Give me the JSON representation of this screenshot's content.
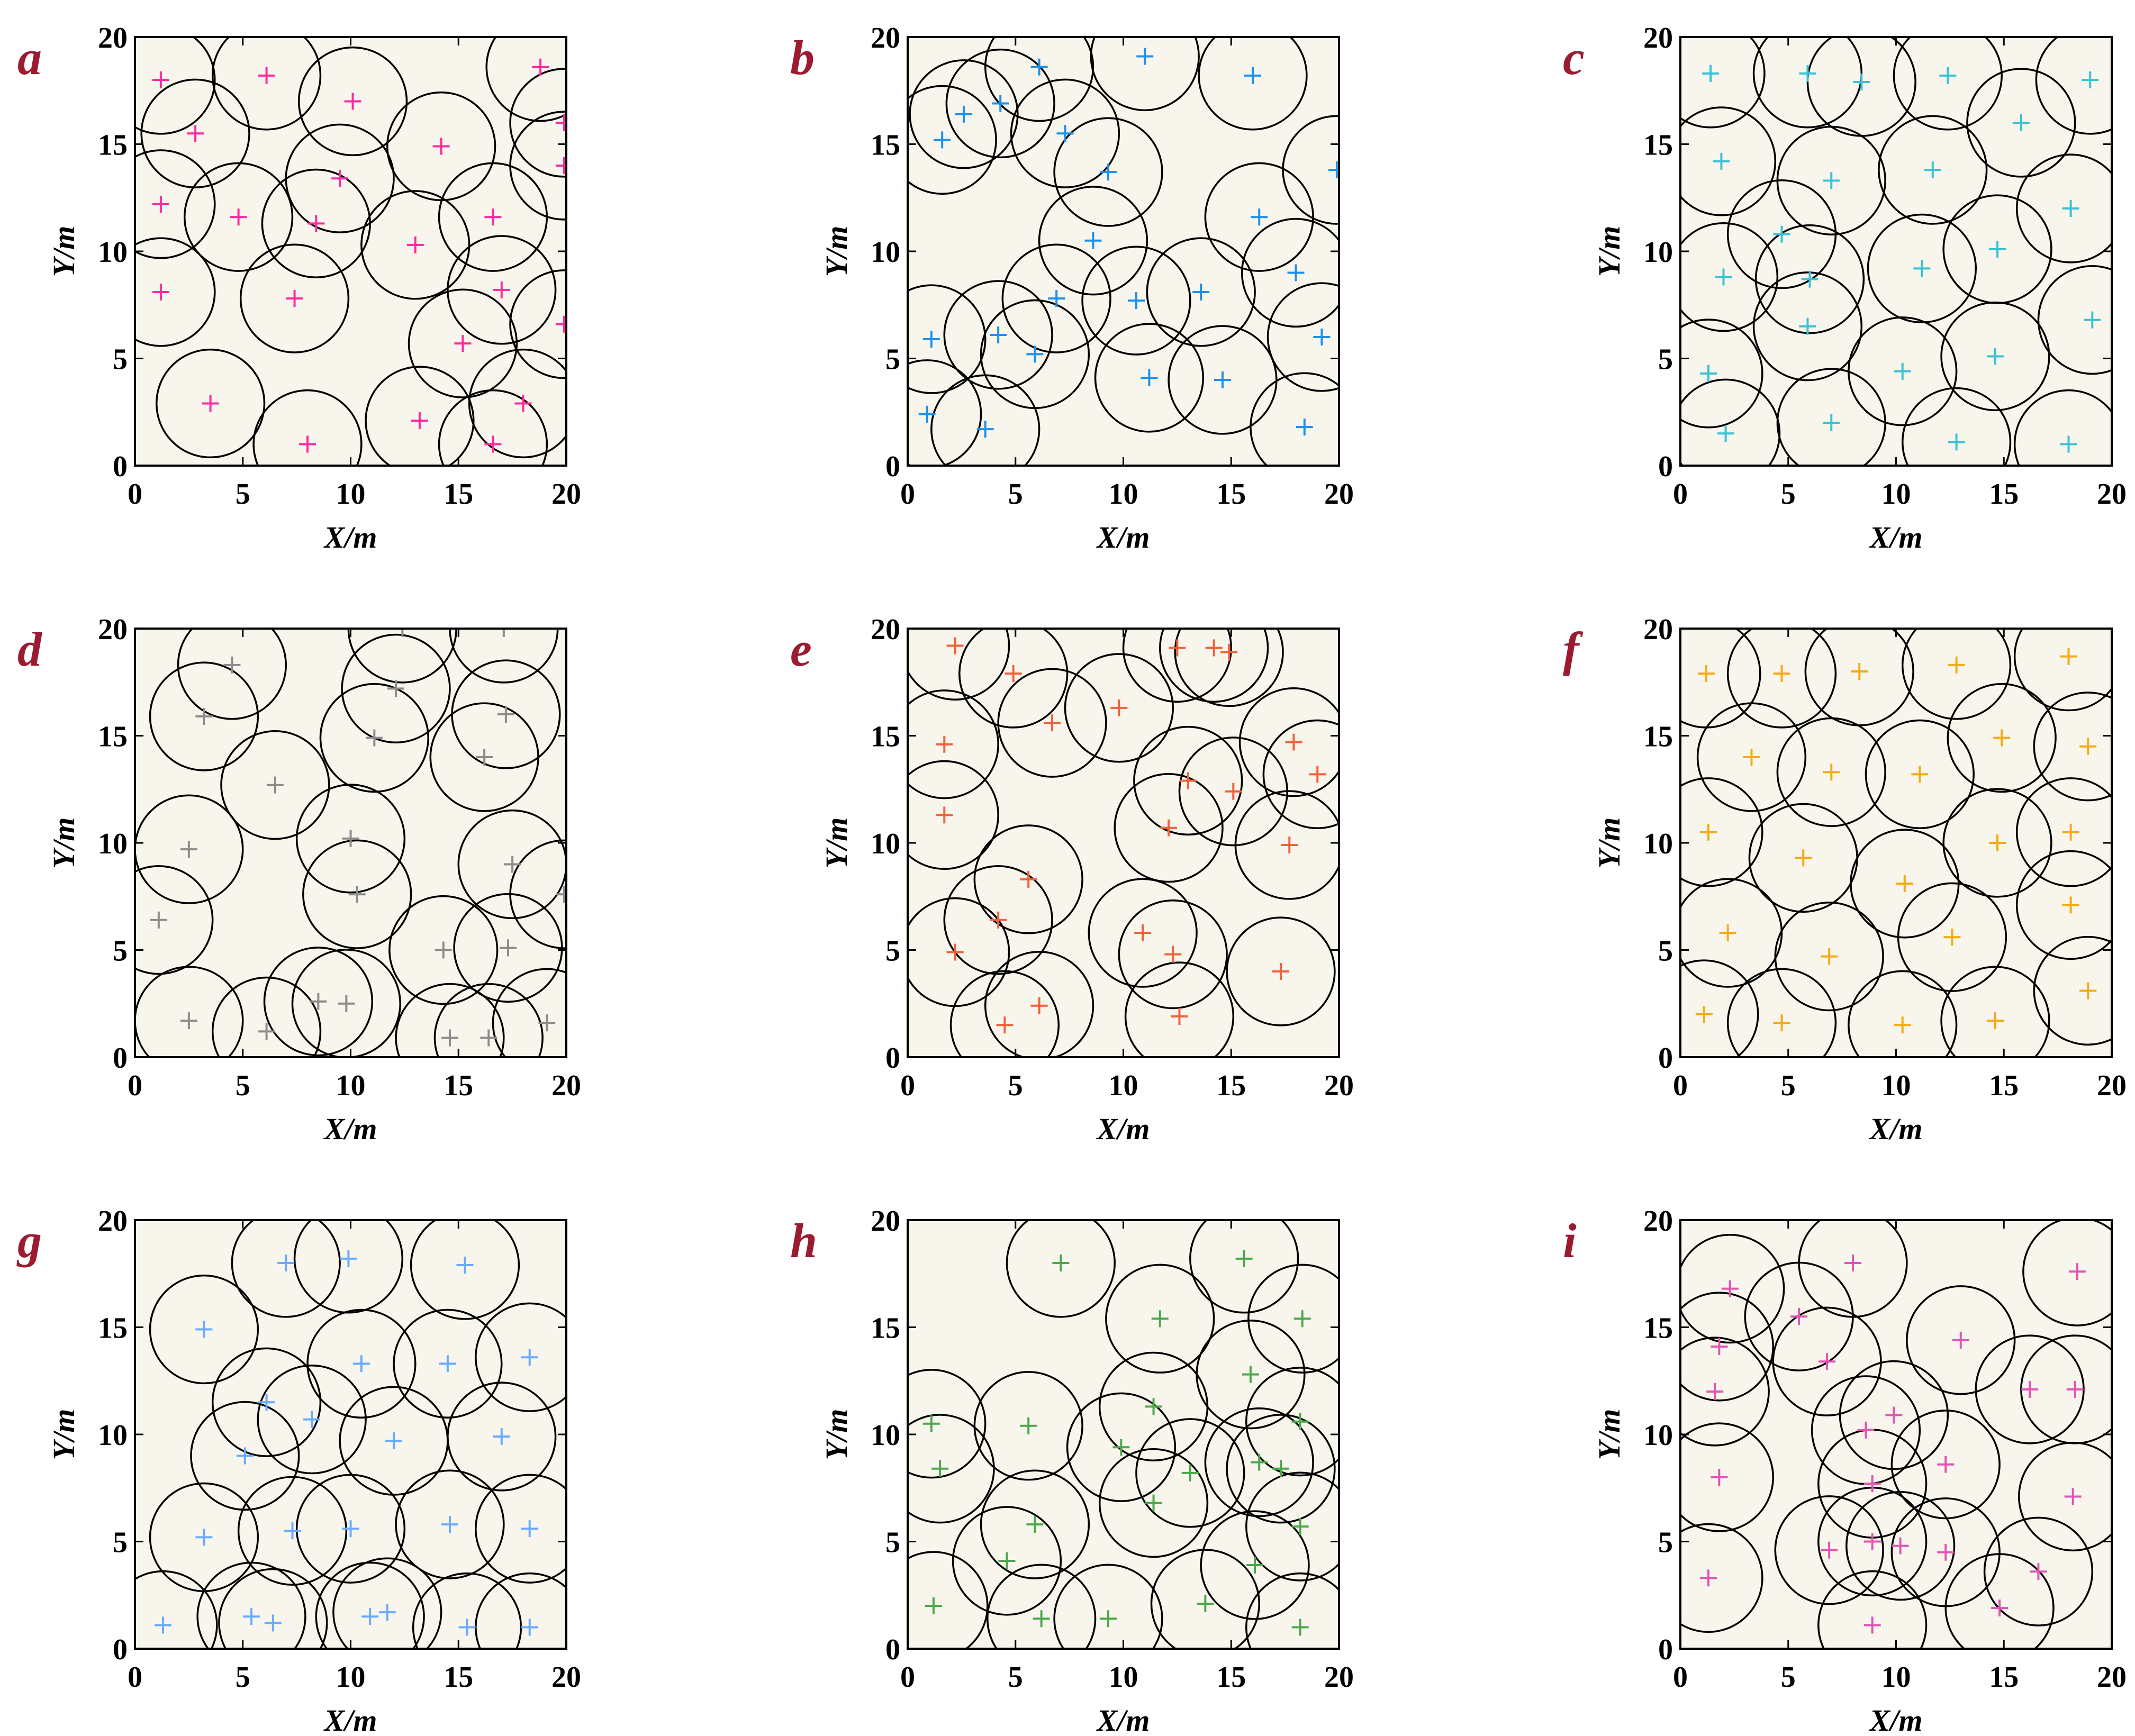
{
  "figure": {
    "background": "#ffffff",
    "plot_background": "#f8f6ec",
    "circle_color": "#000000",
    "letter_color": "#9b1b30"
  },
  "chart_data": [
    {
      "type": "scatter",
      "label": "a",
      "xlabel": "X/m",
      "ylabel": "Y/m",
      "xlim": [
        0,
        20
      ],
      "ylim": [
        0,
        20
      ],
      "xticks": [
        "0",
        "5",
        "10",
        "15",
        "20"
      ],
      "yticks": [
        "0",
        "5",
        "10",
        "15",
        "20"
      ],
      "grid": false,
      "marker_color": "#ff2aa0",
      "coverage_radius": 2.5,
      "points": [
        [
          1.2,
          18
        ],
        [
          6.1,
          18.2
        ],
        [
          2.8,
          15.5
        ],
        [
          10.1,
          17
        ],
        [
          18.8,
          18.6
        ],
        [
          1.2,
          12.2
        ],
        [
          4.8,
          11.6
        ],
        [
          8.4,
          11.3
        ],
        [
          9.5,
          13.4
        ],
        [
          14.2,
          14.9
        ],
        [
          19.9,
          16
        ],
        [
          19.9,
          14
        ],
        [
          13,
          10.3
        ],
        [
          16.6,
          11.6
        ],
        [
          1.2,
          8.1
        ],
        [
          7.4,
          7.8
        ],
        [
          17,
          8.2
        ],
        [
          19.9,
          6.6
        ],
        [
          15.2,
          5.7
        ],
        [
          3.5,
          2.9
        ],
        [
          8,
          1
        ],
        [
          13.2,
          2.1
        ],
        [
          16.6,
          1
        ],
        [
          18,
          2.9
        ]
      ]
    },
    {
      "type": "scatter",
      "label": "b",
      "xlabel": "X/m",
      "ylabel": "Y/m",
      "xlim": [
        0,
        20
      ],
      "ylim": [
        0,
        20
      ],
      "xticks": [
        "0",
        "5",
        "10",
        "15",
        "20"
      ],
      "yticks": [
        "0",
        "5",
        "10",
        "15",
        "20"
      ],
      "grid": false,
      "marker_color": "#1e90ee",
      "coverage_radius": 2.5,
      "points": [
        [
          6.1,
          18.6
        ],
        [
          11,
          19.1
        ],
        [
          16,
          18.2
        ],
        [
          2.6,
          16.4
        ],
        [
          4.3,
          16.9
        ],
        [
          1.6,
          15.2
        ],
        [
          7.3,
          15.5
        ],
        [
          9.3,
          13.7
        ],
        [
          19.9,
          13.8
        ],
        [
          16.3,
          11.6
        ],
        [
          8.6,
          10.5
        ],
        [
          18,
          9
        ],
        [
          6.9,
          7.8
        ],
        [
          10.6,
          7.7
        ],
        [
          13.6,
          8.1
        ],
        [
          1.1,
          5.9
        ],
        [
          4.2,
          6.1
        ],
        [
          5.9,
          5.2
        ],
        [
          19.2,
          6
        ],
        [
          11.2,
          4.1
        ],
        [
          14.6,
          4
        ],
        [
          0.9,
          2.4
        ],
        [
          3.6,
          1.7
        ],
        [
          18.4,
          1.8
        ]
      ]
    },
    {
      "type": "scatter",
      "label": "c",
      "xlabel": "X/m",
      "ylabel": "Y/m",
      "xlim": [
        0,
        20
      ],
      "ylim": [
        0,
        20
      ],
      "xticks": [
        "0",
        "5",
        "10",
        "15",
        "20"
      ],
      "yticks": [
        "0",
        "5",
        "10",
        "15",
        "20"
      ],
      "grid": false,
      "marker_color": "#3cc1d4",
      "coverage_radius": 2.5,
      "points": [
        [
          1.4,
          18.3
        ],
        [
          5.9,
          18.3
        ],
        [
          8.4,
          17.9
        ],
        [
          12.4,
          18.2
        ],
        [
          19,
          18
        ],
        [
          15.8,
          16
        ],
        [
          1.9,
          14.2
        ],
        [
          7,
          13.3
        ],
        [
          11.7,
          13.8
        ],
        [
          18.1,
          12
        ],
        [
          4.7,
          10.8
        ],
        [
          2,
          8.8
        ],
        [
          6,
          8.7
        ],
        [
          11.2,
          9.2
        ],
        [
          14.7,
          10.1
        ],
        [
          5.9,
          6.5
        ],
        [
          19.1,
          6.8
        ],
        [
          1.3,
          4.3
        ],
        [
          10.3,
          4.4
        ],
        [
          14.6,
          5.1
        ],
        [
          2.1,
          1.5
        ],
        [
          7,
          2
        ],
        [
          12.8,
          1.1
        ],
        [
          18,
          1
        ]
      ]
    },
    {
      "type": "scatter",
      "label": "d",
      "xlabel": "X/m",
      "ylabel": "Y/m",
      "xlim": [
        0,
        20
      ],
      "ylim": [
        0,
        20
      ],
      "xticks": [
        "0",
        "5",
        "10",
        "15",
        "20"
      ],
      "yticks": [
        "0",
        "5",
        "10",
        "15",
        "20"
      ],
      "grid": false,
      "marker_color": "#8c8c8c",
      "coverage_radius": 2.5,
      "points": [
        [
          12.4,
          20
        ],
        [
          17.1,
          20
        ],
        [
          4.5,
          18.3
        ],
        [
          12.1,
          17.2
        ],
        [
          3.2,
          15.9
        ],
        [
          11.1,
          14.9
        ],
        [
          17.2,
          16
        ],
        [
          16.2,
          14
        ],
        [
          6.5,
          12.7
        ],
        [
          2.5,
          9.7
        ],
        [
          10,
          10.2
        ],
        [
          10.3,
          7.6
        ],
        [
          17.5,
          9
        ],
        [
          19.9,
          7.6
        ],
        [
          1.1,
          6.4
        ],
        [
          14.3,
          5
        ],
        [
          17.3,
          5.1
        ],
        [
          2.5,
          1.7
        ],
        [
          6.1,
          1.2
        ],
        [
          8.5,
          2.6
        ],
        [
          9.8,
          2.5
        ],
        [
          14.6,
          0.9
        ],
        [
          16.4,
          0.9
        ],
        [
          19.1,
          1.6
        ]
      ]
    },
    {
      "type": "scatter",
      "label": "e",
      "xlabel": "X/m",
      "ylabel": "Y/m",
      "xlim": [
        0,
        20
      ],
      "ylim": [
        0,
        20
      ],
      "xticks": [
        "0",
        "5",
        "10",
        "15",
        "20"
      ],
      "yticks": [
        "0",
        "5",
        "10",
        "15",
        "20"
      ],
      "grid": false,
      "marker_color": "#f0623c",
      "coverage_radius": 2.5,
      "points": [
        [
          2.2,
          19.2
        ],
        [
          12.5,
          19.1
        ],
        [
          14.2,
          19.1
        ],
        [
          14.9,
          18.9
        ],
        [
          4.9,
          17.9
        ],
        [
          9.8,
          16.3
        ],
        [
          6.7,
          15.6
        ],
        [
          1.7,
          14.6
        ],
        [
          17.9,
          14.7
        ],
        [
          13,
          12.9
        ],
        [
          15.1,
          12.4
        ],
        [
          19,
          13.2
        ],
        [
          1.7,
          11.3
        ],
        [
          12.1,
          10.7
        ],
        [
          17.7,
          9.9
        ],
        [
          5.6,
          8.3
        ],
        [
          4.2,
          6.4
        ],
        [
          2.2,
          4.9
        ],
        [
          10.9,
          5.8
        ],
        [
          12.3,
          4.8
        ],
        [
          17.3,
          4
        ],
        [
          4.5,
          1.5
        ],
        [
          6.1,
          2.4
        ],
        [
          12.6,
          1.9
        ]
      ]
    },
    {
      "type": "scatter",
      "label": "f",
      "xlabel": "X/m",
      "ylabel": "Y/m",
      "xlim": [
        0,
        20
      ],
      "ylim": [
        0,
        20
      ],
      "xticks": [
        "0",
        "5",
        "10",
        "15",
        "20"
      ],
      "yticks": [
        "0",
        "5",
        "10",
        "15",
        "20"
      ],
      "grid": false,
      "marker_color": "#f5aa14",
      "coverage_radius": 2.5,
      "points": [
        [
          1.2,
          17.9
        ],
        [
          4.7,
          17.9
        ],
        [
          8.3,
          18
        ],
        [
          12.8,
          18.3
        ],
        [
          18,
          18.7
        ],
        [
          3.3,
          14
        ],
        [
          7,
          13.3
        ],
        [
          11.1,
          13.2
        ],
        [
          14.9,
          14.9
        ],
        [
          18.9,
          14.5
        ],
        [
          1.3,
          10.5
        ],
        [
          5.7,
          9.3
        ],
        [
          10.4,
          8.1
        ],
        [
          14.7,
          10
        ],
        [
          18.1,
          10.5
        ],
        [
          2.2,
          5.8
        ],
        [
          6.9,
          4.7
        ],
        [
          12.6,
          5.6
        ],
        [
          18.1,
          7.1
        ],
        [
          1.1,
          2
        ],
        [
          4.7,
          1.6
        ],
        [
          10.3,
          1.5
        ],
        [
          14.6,
          1.7
        ],
        [
          18.9,
          3.1
        ]
      ]
    },
    {
      "type": "scatter",
      "label": "g",
      "xlabel": "X/m",
      "ylabel": "Y/m",
      "xlim": [
        0,
        20
      ],
      "ylim": [
        0,
        20
      ],
      "xticks": [
        "0",
        "5",
        "10",
        "15",
        "20"
      ],
      "yticks": [
        "0",
        "5",
        "10",
        "15",
        "20"
      ],
      "grid": false,
      "marker_color": "#6aabff",
      "coverage_radius": 2.5,
      "points": [
        [
          7,
          18
        ],
        [
          9.9,
          18.2
        ],
        [
          15.3,
          17.9
        ],
        [
          3.2,
          14.9
        ],
        [
          10.5,
          13.3
        ],
        [
          14.5,
          13.3
        ],
        [
          18.3,
          13.6
        ],
        [
          6.1,
          11.5
        ],
        [
          8.2,
          10.7
        ],
        [
          12,
          9.7
        ],
        [
          17,
          9.9
        ],
        [
          5.1,
          9
        ],
        [
          3.2,
          5.2
        ],
        [
          7.3,
          5.5
        ],
        [
          10,
          5.6
        ],
        [
          14.6,
          5.8
        ],
        [
          18.3,
          5.6
        ],
        [
          1.3,
          1.1
        ],
        [
          5.4,
          1.5
        ],
        [
          6.4,
          1.2
        ],
        [
          10.9,
          1.5
        ],
        [
          11.7,
          1.7
        ],
        [
          15.4,
          1
        ],
        [
          18.3,
          1
        ]
      ]
    },
    {
      "type": "scatter",
      "label": "h",
      "xlabel": "X/m",
      "ylabel": "Y/m",
      "xlim": [
        0,
        20
      ],
      "ylim": [
        0,
        20
      ],
      "xticks": [
        "0",
        "5",
        "10",
        "15",
        "20"
      ],
      "yticks": [
        "0",
        "5",
        "10",
        "15",
        "20"
      ],
      "grid": false,
      "marker_color": "#4ca84c",
      "coverage_radius": 2.5,
      "points": [
        [
          7.1,
          18
        ],
        [
          15.6,
          18.2
        ],
        [
          11.7,
          15.4
        ],
        [
          18.3,
          15.4
        ],
        [
          15.9,
          12.8
        ],
        [
          11.4,
          11.3
        ],
        [
          18.2,
          10.6
        ],
        [
          1.1,
          10.5
        ],
        [
          5.6,
          10.4
        ],
        [
          9.9,
          9.4
        ],
        [
          13.1,
          8.2
        ],
        [
          16.3,
          8.7
        ],
        [
          17.3,
          8.4
        ],
        [
          1.5,
          8.4
        ],
        [
          11.4,
          6.8
        ],
        [
          5.9,
          5.8
        ],
        [
          4.6,
          4.1
        ],
        [
          16.1,
          3.9
        ],
        [
          18.2,
          5.7
        ],
        [
          1.2,
          2
        ],
        [
          6.2,
          1.4
        ],
        [
          9.3,
          1.4
        ],
        [
          13.8,
          2.1
        ],
        [
          18.2,
          1
        ]
      ]
    },
    {
      "type": "scatter",
      "label": "i",
      "xlabel": "X/m",
      "ylabel": "Y/m",
      "xlim": [
        0,
        20
      ],
      "ylim": [
        0,
        20
      ],
      "xticks": [
        "0",
        "5",
        "10",
        "15",
        "20"
      ],
      "yticks": [
        "0",
        "5",
        "10",
        "15",
        "20"
      ],
      "grid": false,
      "marker_color": "#e055b5",
      "coverage_radius": 2.5,
      "points": [
        [
          2.3,
          16.8
        ],
        [
          8,
          18
        ],
        [
          18.4,
          17.6
        ],
        [
          1.8,
          14.1
        ],
        [
          5.5,
          15.5
        ],
        [
          1.6,
          12
        ],
        [
          6.8,
          13.4
        ],
        [
          13,
          14.4
        ],
        [
          16.2,
          12.1
        ],
        [
          18.3,
          12.1
        ],
        [
          8.6,
          10.2
        ],
        [
          9.9,
          10.9
        ],
        [
          12.3,
          8.6
        ],
        [
          1.8,
          8
        ],
        [
          8.9,
          7.7
        ],
        [
          8.9,
          5
        ],
        [
          10.2,
          4.8
        ],
        [
          6.9,
          4.6
        ],
        [
          12.3,
          4.5
        ],
        [
          16.6,
          3.6
        ],
        [
          1.3,
          3.3
        ],
        [
          14.8,
          1.9
        ],
        [
          8.9,
          1.1
        ],
        [
          18.2,
          7.1
        ]
      ]
    }
  ]
}
